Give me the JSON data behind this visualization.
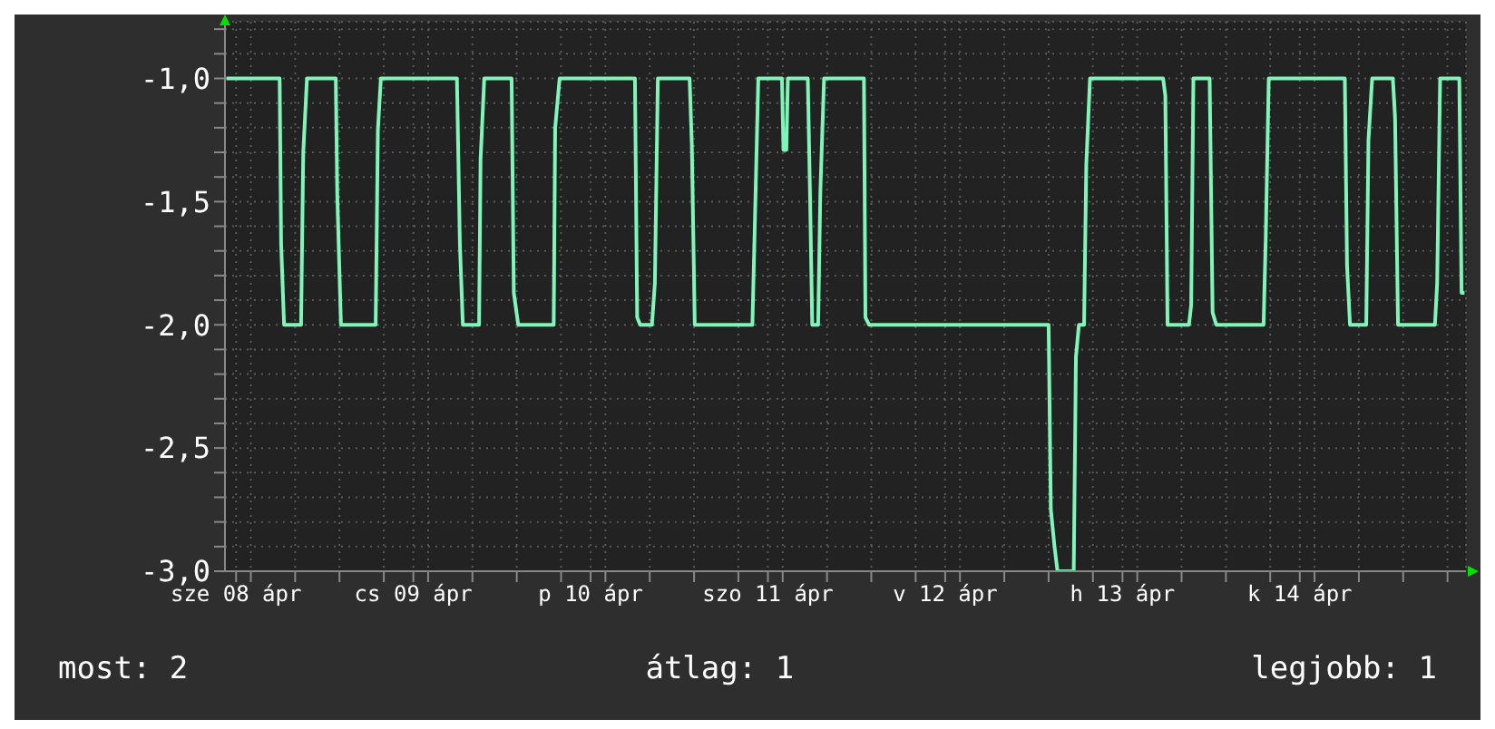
{
  "chart_data": {
    "type": "line",
    "xlim": [
      "--04-08T10:30",
      "--04-15T10:30"
    ],
    "ylim": [
      -3,
      -0.77
    ],
    "xticks": [
      {
        "value": "--04-08T12:00",
        "label": "sze 08 ápr"
      },
      {
        "value": "--04-09T12:00",
        "label": "cs 09 ápr"
      },
      {
        "value": "--04-10T12:00",
        "label": "p 10 ápr"
      },
      {
        "value": "--04-11T12:00",
        "label": "szo 11 ápr"
      },
      {
        "value": "--04-12T12:00",
        "label": "v 12 ápr"
      },
      {
        "value": "--04-13T12:00",
        "label": "h 13 ápr"
      },
      {
        "value": "--04-14T12:00",
        "label": "k 14 ápr"
      },
      {
        "value": "--04-08T14:00",
        "label": null
      },
      {
        "value": "--04-08T20:00",
        "label": null
      },
      {
        "value": "--04-09T02:00",
        "label": null
      },
      {
        "value": "--04-09T08:00",
        "label": null
      },
      {
        "value": "--04-09T14:00",
        "label": null
      },
      {
        "value": "--04-09T20:00",
        "label": null
      },
      {
        "value": "--04-10T02:00",
        "label": null
      },
      {
        "value": "--04-10T08:00",
        "label": null
      },
      {
        "value": "--04-10T14:00",
        "label": null
      },
      {
        "value": "--04-10T20:00",
        "label": null
      },
      {
        "value": "--04-11T02:00",
        "label": null
      },
      {
        "value": "--04-11T08:00",
        "label": null
      },
      {
        "value": "--04-11T14:00",
        "label": null
      },
      {
        "value": "--04-11T20:00",
        "label": null
      },
      {
        "value": "--04-12T02:00",
        "label": null
      },
      {
        "value": "--04-12T08:00",
        "label": null
      },
      {
        "value": "--04-12T14:00",
        "label": null
      },
      {
        "value": "--04-12T20:00",
        "label": null
      },
      {
        "value": "--04-13T02:00",
        "label": null
      },
      {
        "value": "--04-13T08:00",
        "label": null
      },
      {
        "value": "--04-13T14:00",
        "label": null
      },
      {
        "value": "--04-13T20:00",
        "label": null
      },
      {
        "value": "--04-14T02:00",
        "label": null
      },
      {
        "value": "--04-14T08:00",
        "label": null
      },
      {
        "value": "--04-14T14:00",
        "label": null
      },
      {
        "value": "--04-14T20:00",
        "label": null
      },
      {
        "value": "--04-15T02:00",
        "label": null
      },
      {
        "value": "--04-15T08:00",
        "label": null
      }
    ],
    "yticks": [
      {
        "value": -3,
        "label": "-3,0"
      },
      {
        "value": -2.9,
        "label": null
      },
      {
        "value": -2.8,
        "label": null
      },
      {
        "value": -2.7,
        "label": null
      },
      {
        "value": -2.6,
        "label": null
      },
      {
        "value": -2.5,
        "label": "-2,5"
      },
      {
        "value": -2.4,
        "label": null
      },
      {
        "value": -2.3,
        "label": null
      },
      {
        "value": -2.2,
        "label": null
      },
      {
        "value": -2.1,
        "label": null
      },
      {
        "value": -2,
        "label": "-2,0"
      },
      {
        "value": -1.9,
        "label": null
      },
      {
        "value": -1.8,
        "label": null
      },
      {
        "value": -1.7,
        "label": null
      },
      {
        "value": -1.6,
        "label": null
      },
      {
        "value": -1.5,
        "label": "-1,5"
      },
      {
        "value": -1.4,
        "label": null
      },
      {
        "value": -1.3,
        "label": null
      },
      {
        "value": -1.2,
        "label": null
      },
      {
        "value": -1.1,
        "label": null
      },
      {
        "value": -1,
        "label": "-1,0"
      },
      {
        "value": -0.9,
        "label": null
      },
      {
        "value": -0.8,
        "label": null
      }
    ],
    "grid": true,
    "legend": false,
    "marker": "none",
    "line_style": "solid",
    "series": [
      {
        "color": "#7ff5b8",
        "x": [
          "--04-08T10:42",
          "--04-08T17:54",
          "--04-08T18:06",
          "--04-08T18:30",
          "--04-08T20:48",
          "--04-08T21:06",
          "--04-08T21:36",
          "--04-09T01:30",
          "--04-09T01:42",
          "--04-09T02:12",
          "--04-09T06:54",
          "--04-09T07:12",
          "--04-09T07:36",
          "--04-09T17:54",
          "--04-09T18:18",
          "--04-09T18:42",
          "--04-09T20:54",
          "--04-09T21:06",
          "--04-09T21:36",
          "--04-10T01:18",
          "--04-10T01:36",
          "--04-10T02:12",
          "--04-10T07:00",
          "--04-10T07:12",
          "--04-10T07:48",
          "--04-10T18:00",
          "--04-10T18:18",
          "--04-10T18:42",
          "--04-10T20:18",
          "--04-10T20:42",
          "--04-10T21:06",
          "--04-11T01:24",
          "--04-11T01:42",
          "--04-11T02:06",
          "--04-11T09:54",
          "--04-11T10:12",
          "--04-11T10:42",
          "--04-11T13:54",
          "--04-11T14:06",
          "--04-11T14:30",
          "--04-11T14:42",
          "--04-11T17:24",
          "--04-11T17:42",
          "--04-11T18:00",
          "--04-11T18:48",
          "--04-11T19:06",
          "--04-11T19:36",
          "--04-12T01:00",
          "--04-12T01:12",
          "--04-12T01:42",
          "--04-13T02:00",
          "--04-13T02:18",
          "--04-13T02:48",
          "--04-13T03:12",
          "--04-13T05:24",
          "--04-13T05:42",
          "--04-13T06:06",
          "--04-13T06:48",
          "--04-13T07:06",
          "--04-13T07:36",
          "--04-13T17:30",
          "--04-13T17:48",
          "--04-13T18:06",
          "--04-13T21:00",
          "--04-13T21:18",
          "--04-13T21:36",
          "--04-13T23:48",
          "--04-14T00:12",
          "--04-14T00:42",
          "--04-14T07:06",
          "--04-14T07:24",
          "--04-14T07:48",
          "--04-14T18:06",
          "--04-14T18:24",
          "--04-14T18:48",
          "--04-14T21:00",
          "--04-14T21:18",
          "--04-14T21:48",
          "--04-15T00:36",
          "--04-15T00:54",
          "--04-15T01:18",
          "--04-15T06:18",
          "--04-15T06:36",
          "--04-15T07:00",
          "--04-15T09:36",
          "--04-15T09:54",
          "--04-15T10:18"
        ],
        "values": [
          -1,
          -1,
          -1.67,
          -2,
          -2,
          -1.3,
          -1,
          -1,
          -1.47,
          -2,
          -2,
          -1.21,
          -1,
          -1,
          -1.67,
          -2,
          -2,
          -1.33,
          -1,
          -1,
          -1.87,
          -2,
          -2,
          -1.2,
          -1,
          -1,
          -1.97,
          -2,
          -2,
          -1.83,
          -1,
          -1,
          -1.27,
          -2,
          -2,
          -1.63,
          -1,
          -1,
          -1.29,
          -1.29,
          -1,
          -1,
          -1.47,
          -2,
          -2,
          -1.46,
          -1,
          -1,
          -1.97,
          -2,
          -2,
          -2.75,
          -2.9,
          -3,
          -3,
          -2.13,
          -2,
          -2,
          -1.35,
          -1,
          -1,
          -1.07,
          -2,
          -2,
          -1.92,
          -1,
          -1,
          -1.95,
          -2,
          -2,
          -1.64,
          -1,
          -1,
          -1.76,
          -2,
          -2,
          -1.25,
          -1,
          -1,
          -1.16,
          -2,
          -2,
          -1.83,
          -1,
          -1,
          -1.87,
          -1.87
        ]
      }
    ],
    "annotations": [
      "most: 2",
      "átlag: 1",
      "legjobb: 1"
    ]
  }
}
